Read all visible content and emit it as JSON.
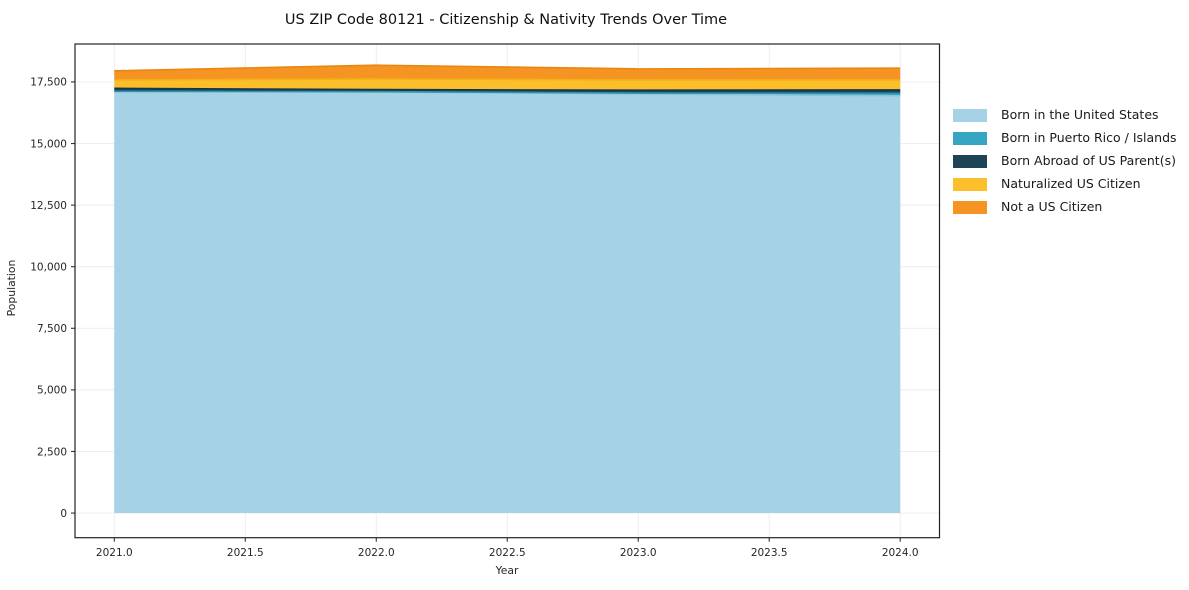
{
  "chart_data": {
    "type": "area",
    "stacked": true,
    "title": "US ZIP Code 80121 - Citizenship & Nativity Trends Over Time",
    "xlabel": "Year",
    "ylabel": "Population",
    "x": [
      2021,
      2022,
      2023,
      2024
    ],
    "series": [
      {
        "name": "Born in the United States",
        "color": "#a5d2e5",
        "edge": "#8cc3da",
        "values": [
          17110,
          17095,
          17010,
          16940
        ]
      },
      {
        "name": "Born in Puerto Rico / Islands",
        "color": "#36a4c3",
        "edge": "#2d93b0",
        "values": [
          10,
          10,
          40,
          100
        ]
      },
      {
        "name": "Born Abroad of US Parent(s)",
        "color": "#1e4356",
        "edge": "#16364a",
        "values": [
          120,
          85,
          115,
          135
        ]
      },
      {
        "name": "Naturalized US Citizen",
        "color": "#fcbf2b",
        "edge": "#f2b114",
        "values": [
          340,
          430,
          415,
          405
        ]
      },
      {
        "name": "Not a US Citizen",
        "color": "#f59422",
        "edge": "#e88610",
        "values": [
          370,
          560,
          450,
          480
        ]
      }
    ],
    "totals": [
      17950,
      18180,
      18030,
      18060
    ],
    "xlim": [
      2020.85,
      2024.15
    ],
    "ylim": [
      -1000,
      19040
    ],
    "xticks": [
      {
        "v": 2021.0,
        "label": "2021.0"
      },
      {
        "v": 2021.5,
        "label": "2021.5"
      },
      {
        "v": 2022.0,
        "label": "2022.0"
      },
      {
        "v": 2022.5,
        "label": "2022.5"
      },
      {
        "v": 2023.0,
        "label": "2023.0"
      },
      {
        "v": 2023.5,
        "label": "2023.5"
      },
      {
        "v": 2024.0,
        "label": "2024.0"
      }
    ],
    "yticks": [
      {
        "v": 0,
        "label": "0"
      },
      {
        "v": 2500,
        "label": "2,500"
      },
      {
        "v": 5000,
        "label": "5,000"
      },
      {
        "v": 7500,
        "label": "7,500"
      },
      {
        "v": 10000,
        "label": "10,000"
      },
      {
        "v": 12500,
        "label": "12,500"
      },
      {
        "v": 15000,
        "label": "15,000"
      },
      {
        "v": 17500,
        "label": "17,500"
      }
    ],
    "grid": true,
    "grid_color": "#ececec",
    "spine_color": "#222222",
    "tick_color": "#333333",
    "legend_position": "outside-right-top"
  }
}
